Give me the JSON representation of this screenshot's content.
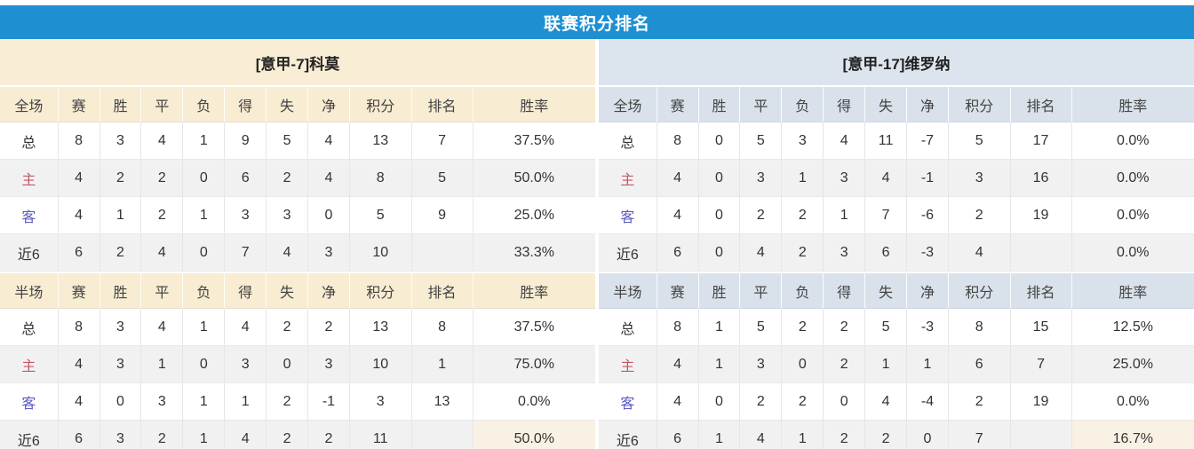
{
  "title": "联赛积分排名",
  "section_labels": {
    "full": "全场",
    "half": "半场"
  },
  "columns": [
    "赛",
    "胜",
    "平",
    "负",
    "得",
    "失",
    "净",
    "积分",
    "排名",
    "胜率"
  ],
  "colors": {
    "title_bar_blue": "#1E90D2",
    "points_red": "#E2412D",
    "rank_blue": "#3D79B7",
    "home_label_red": "#C05A6A",
    "away_label_blue": "#5B5BC0",
    "left_theme_cream": "#F9EDD5",
    "right_theme_bluegray": "#DCE5ED"
  },
  "teams": [
    {
      "name": "[意甲-7]科莫",
      "full": [
        {
          "label": "总",
          "label_style": "normal",
          "cells": [
            "8",
            "3",
            "4",
            "1",
            "9",
            "5",
            "4"
          ],
          "points": "13",
          "rank": "7",
          "rate": "37.5%"
        },
        {
          "label": "主",
          "label_style": "home",
          "cells": [
            "4",
            "2",
            "2",
            "0",
            "6",
            "2",
            "4"
          ],
          "points": "8",
          "rank": "5",
          "rate": "50.0%"
        },
        {
          "label": "客",
          "label_style": "away",
          "cells": [
            "4",
            "1",
            "2",
            "1",
            "3",
            "3",
            "0"
          ],
          "points": "5",
          "rank": "9",
          "rate": "25.0%"
        },
        {
          "label": "近6",
          "label_style": "normal",
          "cells": [
            "6",
            "2",
            "4",
            "0",
            "7",
            "4",
            "3"
          ],
          "points": "10",
          "rank": "",
          "rate": "33.3%"
        }
      ],
      "half": [
        {
          "label": "总",
          "label_style": "normal",
          "cells": [
            "8",
            "3",
            "4",
            "1",
            "4",
            "2",
            "2"
          ],
          "points": "13",
          "rank": "8",
          "rate": "37.5%"
        },
        {
          "label": "主",
          "label_style": "home",
          "cells": [
            "4",
            "3",
            "1",
            "0",
            "3",
            "0",
            "3"
          ],
          "points": "10",
          "rank": "1",
          "rate": "75.0%"
        },
        {
          "label": "客",
          "label_style": "away",
          "cells": [
            "4",
            "0",
            "3",
            "1",
            "1",
            "2",
            "-1"
          ],
          "points": "3",
          "rank": "13",
          "rate": "0.0%"
        },
        {
          "label": "近6",
          "label_style": "normal",
          "cells": [
            "6",
            "3",
            "2",
            "1",
            "4",
            "2",
            "2"
          ],
          "points": "11",
          "rank": "",
          "rate": "50.0%",
          "highlight": true
        }
      ]
    },
    {
      "name": "[意甲-17]维罗纳",
      "full": [
        {
          "label": "总",
          "label_style": "normal",
          "cells": [
            "8",
            "0",
            "5",
            "3",
            "4",
            "11",
            "-7"
          ],
          "points": "5",
          "rank": "17",
          "rate": "0.0%"
        },
        {
          "label": "主",
          "label_style": "home",
          "cells": [
            "4",
            "0",
            "3",
            "1",
            "3",
            "4",
            "-1"
          ],
          "points": "3",
          "rank": "16",
          "rate": "0.0%"
        },
        {
          "label": "客",
          "label_style": "away",
          "cells": [
            "4",
            "0",
            "2",
            "2",
            "1",
            "7",
            "-6"
          ],
          "points": "2",
          "rank": "19",
          "rate": "0.0%"
        },
        {
          "label": "近6",
          "label_style": "normal",
          "cells": [
            "6",
            "0",
            "4",
            "2",
            "3",
            "6",
            "-3"
          ],
          "points": "4",
          "rank": "",
          "rate": "0.0%"
        }
      ],
      "half": [
        {
          "label": "总",
          "label_style": "normal",
          "cells": [
            "8",
            "1",
            "5",
            "2",
            "2",
            "5",
            "-3"
          ],
          "points": "8",
          "rank": "15",
          "rate": "12.5%"
        },
        {
          "label": "主",
          "label_style": "home",
          "cells": [
            "4",
            "1",
            "3",
            "0",
            "2",
            "1",
            "1"
          ],
          "points": "6",
          "rank": "7",
          "rate": "25.0%"
        },
        {
          "label": "客",
          "label_style": "away",
          "cells": [
            "4",
            "0",
            "2",
            "2",
            "0",
            "4",
            "-4"
          ],
          "points": "2",
          "rank": "19",
          "rate": "0.0%"
        },
        {
          "label": "近6",
          "label_style": "normal",
          "cells": [
            "6",
            "1",
            "4",
            "1",
            "2",
            "2",
            "0"
          ],
          "points": "7",
          "rank": "",
          "rate": "16.7%",
          "highlight": true
        }
      ]
    }
  ]
}
